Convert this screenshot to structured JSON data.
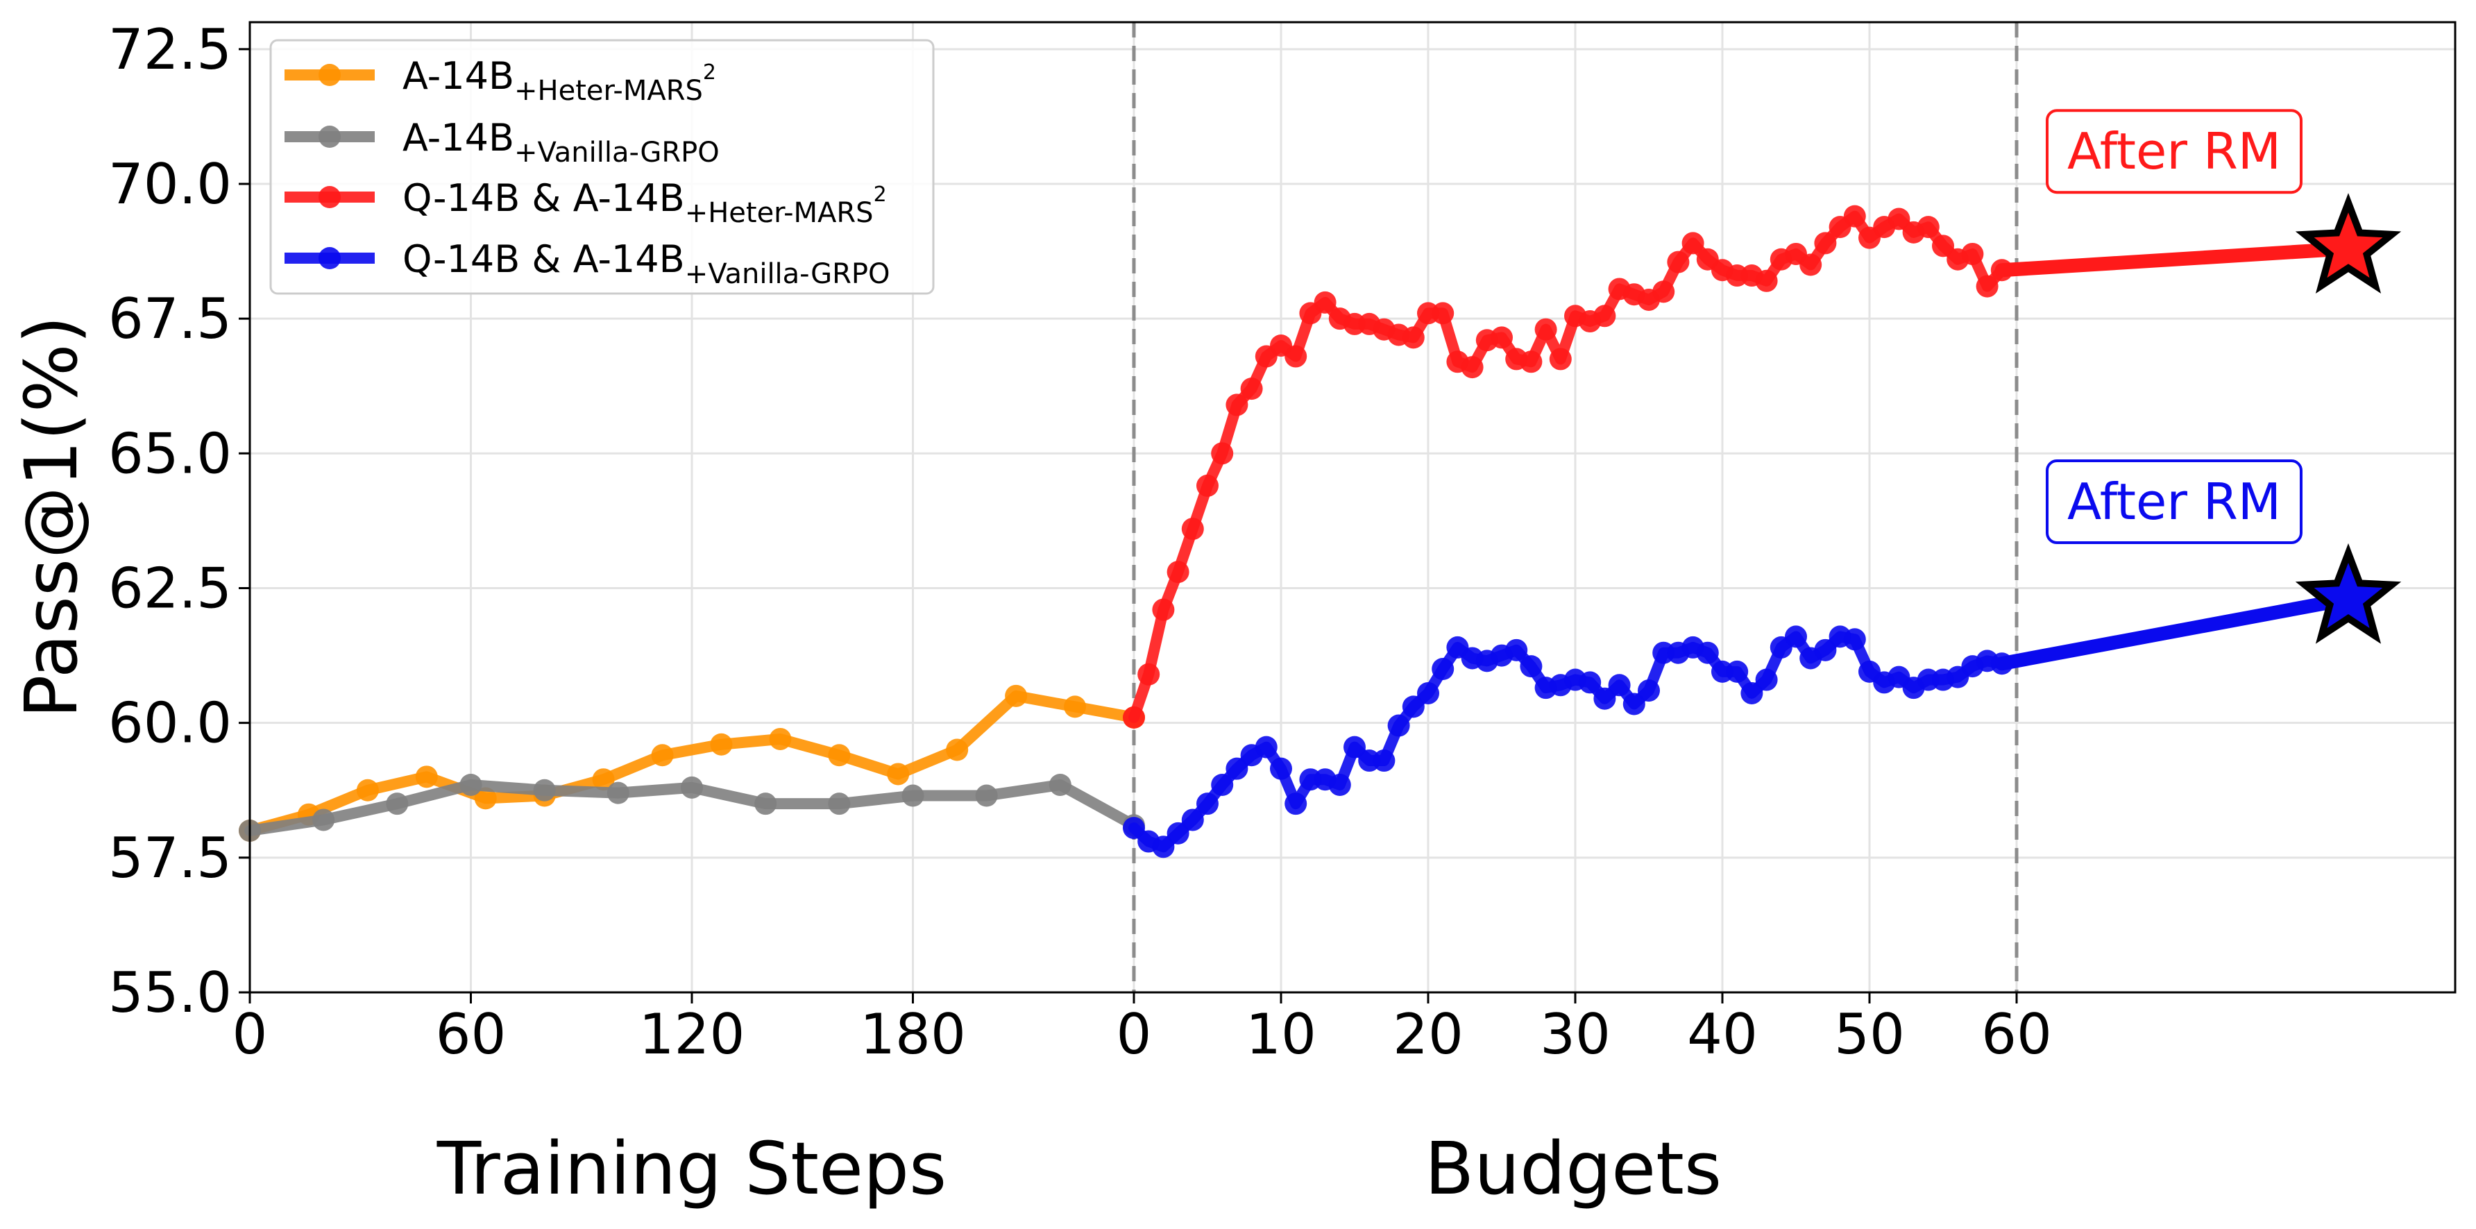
{
  "chart_data": {
    "type": "line",
    "ylabel": "Pass@1(%)",
    "xlabel_left": "Training Steps",
    "xlabel_right": "Budgets",
    "ylim": [
      55.0,
      73.0
    ],
    "y_ticks": [
      "55.0",
      "57.5",
      "60.0",
      "62.5",
      "65.0",
      "67.5",
      "70.0",
      "72.5"
    ],
    "y_tick_values": [
      55.0,
      57.5,
      60.0,
      62.5,
      65.0,
      67.5,
      70.0,
      72.5
    ],
    "training_steps_axis": {
      "range": [
        0,
        240
      ],
      "tick_labels": [
        "0",
        "60",
        "120",
        "180"
      ],
      "tick_values": [
        0,
        60,
        120,
        180
      ]
    },
    "budgets_axis": {
      "range": [
        0,
        60
      ],
      "tick_labels": [
        "0",
        "10",
        "20",
        "30",
        "40",
        "50",
        "60"
      ],
      "tick_values": [
        0,
        10,
        20,
        30,
        40,
        50,
        60
      ]
    },
    "grid": true,
    "legend_placement": "top-left",
    "series": [
      {
        "name": "A-14B",
        "name_sub": "+Heter-MARS",
        "name_sup": "2",
        "panel": "training_steps",
        "color": "#ff9200",
        "x": [
          0,
          16,
          32,
          48,
          64,
          80,
          96,
          112,
          128,
          144,
          160,
          176,
          192,
          208,
          224,
          240
        ],
        "y": [
          58.0,
          58.3,
          58.75,
          59.0,
          58.6,
          58.65,
          58.95,
          59.4,
          59.6,
          59.7,
          59.4,
          59.05,
          59.5,
          60.5,
          60.3,
          60.1
        ]
      },
      {
        "name": "A-14B",
        "name_sub": "+Vanilla-GRPO",
        "name_sup": "",
        "panel": "training_steps",
        "color": "#808080",
        "x": [
          0,
          20,
          40,
          60,
          80,
          100,
          120,
          140,
          160,
          180,
          200,
          220,
          240
        ],
        "y": [
          58.0,
          58.2,
          58.5,
          58.85,
          58.75,
          58.7,
          58.8,
          58.5,
          58.5,
          58.65,
          58.65,
          58.85,
          58.1
        ]
      },
      {
        "name": "Q-14B & A-14B",
        "name_sub": "+Heter-MARS",
        "name_sup": "2",
        "panel": "budgets",
        "color": "#ff1a1a",
        "x": [
          0,
          1,
          2,
          3,
          4,
          5,
          6,
          7,
          8,
          9,
          10,
          11,
          12,
          13,
          14,
          15,
          16,
          17,
          18,
          19,
          20,
          21,
          22,
          23,
          24,
          25,
          26,
          27,
          28,
          29,
          30,
          31,
          32,
          33,
          34,
          35,
          36,
          37,
          38,
          39,
          40,
          41,
          42,
          43,
          44,
          45,
          46,
          47,
          48,
          49,
          50,
          51,
          52,
          53,
          54,
          55,
          56,
          57,
          58,
          59
        ],
        "y": [
          60.1,
          60.9,
          62.1,
          62.8,
          63.6,
          64.4,
          65.0,
          65.9,
          66.2,
          66.8,
          67.0,
          66.8,
          67.6,
          67.8,
          67.5,
          67.4,
          67.4,
          67.3,
          67.2,
          67.15,
          67.6,
          67.6,
          66.7,
          66.6,
          67.1,
          67.15,
          66.75,
          66.7,
          67.3,
          66.75,
          67.55,
          67.45,
          67.55,
          68.05,
          67.95,
          67.85,
          68.0,
          68.55,
          68.9,
          68.6,
          68.4,
          68.3,
          68.3,
          68.2,
          68.6,
          68.7,
          68.5,
          68.9,
          69.2,
          69.4,
          69.0,
          69.2,
          69.35,
          69.1,
          69.2,
          68.85,
          68.6,
          68.7,
          68.1,
          68.4
        ]
      },
      {
        "name": "Q-14B & A-14B",
        "name_sub": "+Vanilla-GRPO",
        "name_sup": "",
        "panel": "budgets",
        "color": "#0a0aee",
        "x": [
          0,
          1,
          2,
          3,
          4,
          5,
          6,
          7,
          8,
          9,
          10,
          11,
          12,
          13,
          14,
          15,
          16,
          17,
          18,
          19,
          20,
          21,
          22,
          23,
          24,
          25,
          26,
          27,
          28,
          29,
          30,
          31,
          32,
          33,
          34,
          35,
          36,
          37,
          38,
          39,
          40,
          41,
          42,
          43,
          44,
          45,
          46,
          47,
          48,
          49,
          50,
          51,
          52,
          53,
          54,
          55,
          56,
          57,
          58,
          59
        ],
        "y": [
          58.05,
          57.8,
          57.7,
          57.95,
          58.2,
          58.5,
          58.85,
          59.15,
          59.4,
          59.55,
          59.15,
          58.5,
          58.95,
          58.95,
          58.85,
          59.55,
          59.3,
          59.3,
          59.95,
          60.3,
          60.55,
          61.0,
          61.4,
          61.2,
          61.15,
          61.25,
          61.35,
          61.05,
          60.65,
          60.7,
          60.8,
          60.75,
          60.45,
          60.7,
          60.35,
          60.6,
          61.3,
          61.3,
          61.4,
          61.3,
          60.95,
          60.95,
          60.55,
          60.8,
          61.4,
          61.6,
          61.2,
          61.35,
          61.6,
          61.55,
          60.95,
          60.75,
          60.85,
          60.65,
          60.8,
          60.8,
          60.85,
          61.05,
          61.15,
          61.1
        ]
      }
    ],
    "after_rm": [
      {
        "label": "After RM",
        "color": "#ff1a1a",
        "y": 68.8,
        "x_budget": 59,
        "y_from": 68.4
      },
      {
        "label": "After RM",
        "color": "#0a0aee",
        "y": 62.3,
        "x_budget": 59,
        "y_from": 61.1
      }
    ]
  }
}
